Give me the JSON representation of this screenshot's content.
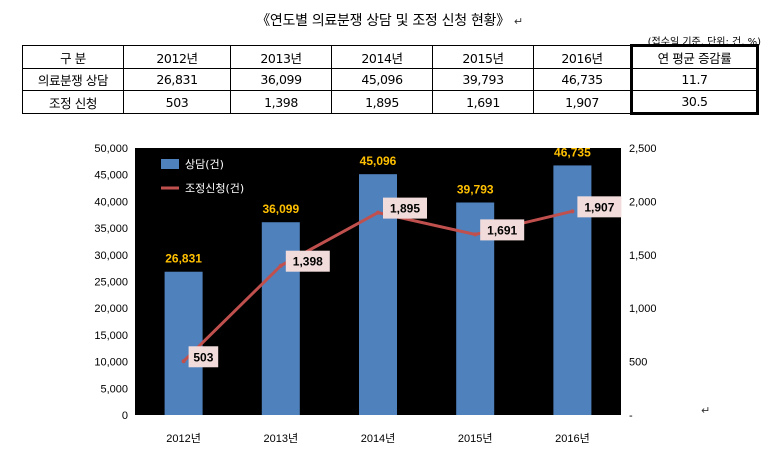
{
  "title": "《연도별 의료분쟁 상담 및 조정 신청 현황》",
  "paragraph_mark": "↵",
  "unit_note": "(접수일 기준, 단위: 건, %)",
  "table": {
    "headers": [
      "구 분",
      "2012년",
      "2013년",
      "2014년",
      "2015년",
      "2016년",
      "연 평균 증감률"
    ],
    "rows": [
      [
        "의료분쟁 상담",
        "26,831",
        "36,099",
        "45,096",
        "39,793",
        "46,735",
        "11.7"
      ],
      [
        "조정 신청",
        "503",
        "1,398",
        "1,895",
        "1,691",
        "1,907",
        "30.5"
      ]
    ]
  },
  "chart_data": {
    "type": "bar",
    "title": "",
    "categories": [
      "2012년",
      "2013년",
      "2014년",
      "2015년",
      "2016년"
    ],
    "series": [
      {
        "name": "상담(건)",
        "type": "bar",
        "axis": "left",
        "color": "#4f81bd",
        "values": [
          26831,
          36099,
          45096,
          39793,
          46735
        ],
        "labels": [
          "26,831",
          "36,099",
          "45,096",
          "39,793",
          "46,735"
        ]
      },
      {
        "name": "조정신청(건)",
        "type": "line",
        "axis": "right",
        "color": "#c0504d",
        "values": [
          503,
          1398,
          1895,
          1691,
          1907
        ],
        "labels": [
          "503",
          "1,398",
          "1,895",
          "1,691",
          "1,907"
        ]
      }
    ],
    "y_left": {
      "min": 0,
      "max": 50000,
      "step": 5000,
      "ticks": [
        "0",
        "5,000",
        "10,000",
        "15,000",
        "20,000",
        "25,000",
        "30,000",
        "35,000",
        "40,000",
        "45,000",
        "50,000"
      ]
    },
    "y_right": {
      "min": 0,
      "max": 2500,
      "step": 500,
      "ticks": [
        "-",
        "500",
        "1,000",
        "1,500",
        "2,000",
        "2,500"
      ]
    },
    "legend_position": "top-left",
    "grid": false,
    "colors": {
      "background": "#000000",
      "bar": "#4f81bd",
      "line": "#c0504d",
      "bar_label": "#ffc000",
      "line_label_bg": "#f2dcdb"
    }
  }
}
